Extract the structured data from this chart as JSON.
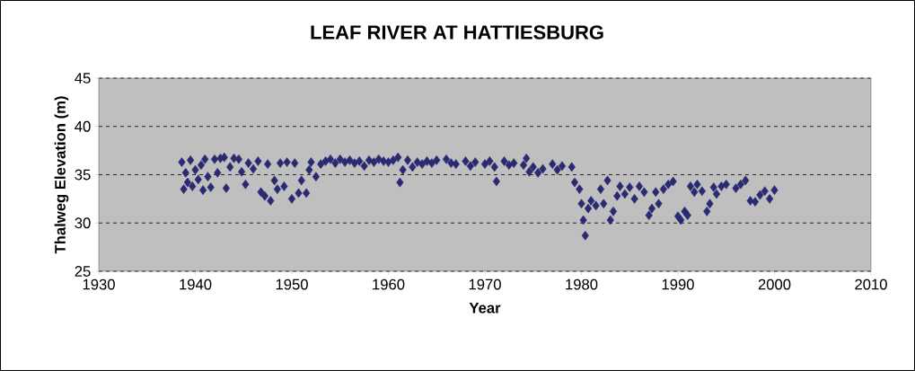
{
  "chart_data": {
    "type": "scatter",
    "title": "LEAF RIVER AT HATTIESBURG",
    "xlabel": "Year",
    "ylabel": "Thalweg Elevation (m)",
    "x": [
      1938.6,
      1938.8,
      1939,
      1939.2,
      1939.5,
      1939.7,
      1940,
      1940.3,
      1940.6,
      1940.8,
      1941,
      1941.3,
      1941.6,
      1942,
      1942.3,
      1942.6,
      1943,
      1943.2,
      1943.6,
      1944,
      1944.5,
      1944.8,
      1945.2,
      1945.5,
      1946,
      1946.5,
      1946.8,
      1947.2,
      1947.5,
      1947.8,
      1948.2,
      1948.5,
      1948.8,
      1949.2,
      1949.5,
      1950,
      1950.3,
      1950.7,
      1951,
      1951.5,
      1951.8,
      1952,
      1952.5,
      1953,
      1953.5,
      1954,
      1954.5,
      1955,
      1955.5,
      1956,
      1956.5,
      1957,
      1957.5,
      1958,
      1958.5,
      1959,
      1959.5,
      1960,
      1960.5,
      1961,
      1961.2,
      1961.5,
      1962,
      1962.5,
      1963,
      1963.5,
      1964,
      1964.5,
      1965,
      1966,
      1966.5,
      1967,
      1968,
      1968.5,
      1969,
      1970,
      1970.5,
      1971,
      1971.2,
      1972,
      1972.5,
      1973,
      1974,
      1974.3,
      1974.6,
      1975,
      1975.5,
      1976,
      1977,
      1977.5,
      1978,
      1979,
      1979.3,
      1979.8,
      1980,
      1980.2,
      1980.4,
      1980.7,
      1981,
      1981.5,
      1982,
      1982.3,
      1982.7,
      1983,
      1983.3,
      1983.7,
      1984,
      1984.5,
      1985,
      1985.5,
      1986,
      1986.5,
      1987,
      1987.3,
      1987.7,
      1988,
      1988.5,
      1989,
      1989.5,
      1990,
      1990.3,
      1990.7,
      1991,
      1991.3,
      1991.7,
      1992,
      1992.5,
      1993,
      1993.3,
      1993.7,
      1994,
      1994.5,
      1995,
      1996,
      1996.5,
      1997,
      1997.5,
      1998,
      1998.5,
      1999,
      1999.5,
      2000
    ],
    "values": [
      36.3,
      33.5,
      35.2,
      34.2,
      36.5,
      33.8,
      35.5,
      34.5,
      36.0,
      33.4,
      36.6,
      34.8,
      33.7,
      36.6,
      35.2,
      36.7,
      36.8,
      33.6,
      35.8,
      36.7,
      36.6,
      35.3,
      34.0,
      36.2,
      35.6,
      36.4,
      33.2,
      32.8,
      36.1,
      32.3,
      34.4,
      33.5,
      36.2,
      33.8,
      36.3,
      32.5,
      36.2,
      33.1,
      34.4,
      33.1,
      35.5,
      36.3,
      34.8,
      36.1,
      36.4,
      36.6,
      36.2,
      36.6,
      36.3,
      36.5,
      36.2,
      36.4,
      35.9,
      36.5,
      36.3,
      36.6,
      36.4,
      36.3,
      36.5,
      36.8,
      34.2,
      35.5,
      36.5,
      35.8,
      36.3,
      36.1,
      36.4,
      36.2,
      36.5,
      36.6,
      36.2,
      36.1,
      36.4,
      35.9,
      36.3,
      36.1,
      36.4,
      35.8,
      34.3,
      36.4,
      36.0,
      36.2,
      36.0,
      36.7,
      35.3,
      35.8,
      35.2,
      35.6,
      36.1,
      35.5,
      35.9,
      35.8,
      34.2,
      33.5,
      32.0,
      30.3,
      28.7,
      31.5,
      32.3,
      31.8,
      33.5,
      32.0,
      34.4,
      30.3,
      31.2,
      32.8,
      33.8,
      33.0,
      33.7,
      32.5,
      33.8,
      33.2,
      30.8,
      31.5,
      33.2,
      32.0,
      33.5,
      34.0,
      34.3,
      30.7,
      30.3,
      31.2,
      30.8,
      33.8,
      33.2,
      34.0,
      33.3,
      31.2,
      32.0,
      33.7,
      33.0,
      33.8,
      34.0,
      33.6,
      34.0,
      34.4,
      32.3,
      32.2,
      32.9,
      33.3,
      32.5,
      33.4
    ],
    "color": "#2a2a72",
    "marker": "diamond",
    "grid": "y",
    "xlim": [
      1930,
      2010
    ],
    "xticks": [
      1930,
      1940,
      1950,
      1960,
      1970,
      1980,
      1990,
      2000,
      2010
    ],
    "ylim": [
      25,
      45
    ],
    "yticks": [
      25,
      30,
      35,
      40,
      45
    ]
  }
}
